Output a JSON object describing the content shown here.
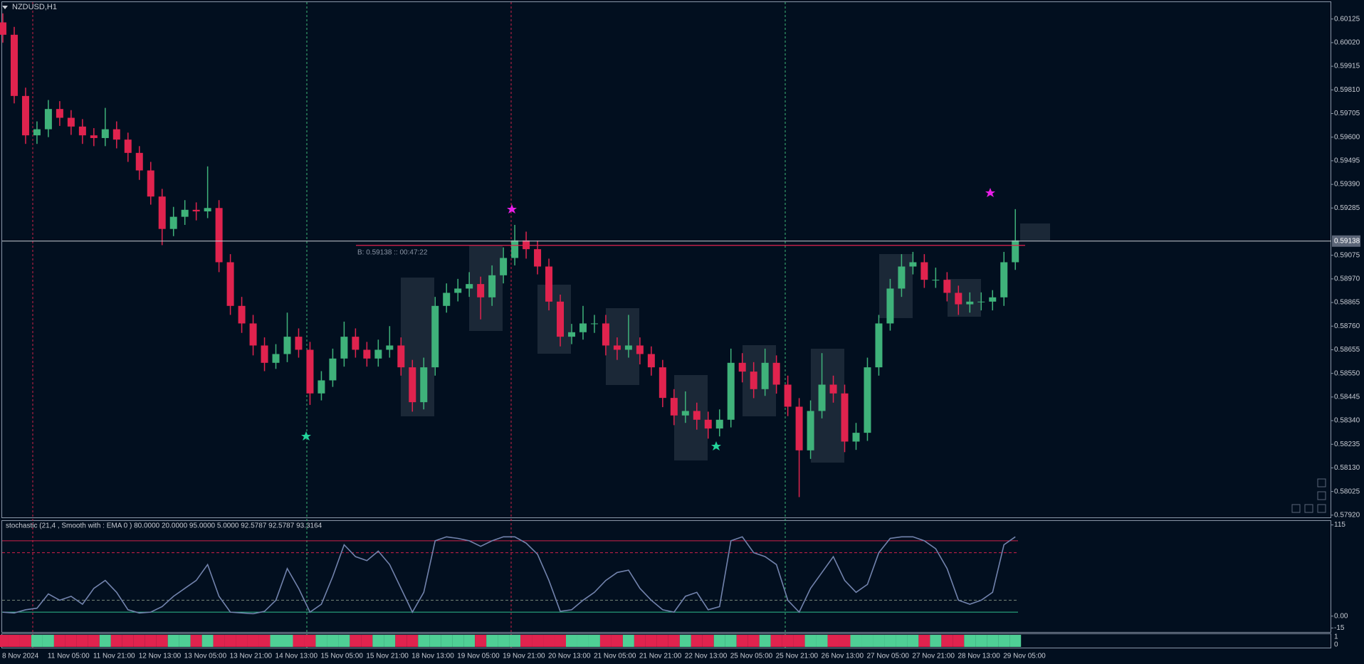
{
  "chart_data": [
    {
      "type": "candlestick",
      "title": "NZDUSD,H1",
      "up_color": "#3fb27a",
      "down_color": "#e0234e",
      "ylim": [
        0.5791,
        0.602
      ],
      "yticks": [
        0.60125,
        {
          "value": 0.6002,
          "label": "0.60020"
        },
        0.59915,
        {
          "value": 0.5981,
          "label": "0.59810"
        },
        0.59705,
        {
          "value": 0.596,
          "label": "0.59600"
        },
        0.59495,
        {
          "value": 0.5939,
          "label": "0.59390"
        },
        0.59285,
        0.59075,
        {
          "value": 0.5897,
          "label": "0.58970"
        },
        0.58865,
        {
          "value": 0.5876,
          "label": "0.58760"
        },
        0.58655,
        {
          "value": 0.5855,
          "label": "0.58550"
        },
        0.58445,
        {
          "value": 0.5834,
          "label": "0.58340"
        },
        0.58235,
        {
          "value": 0.5813,
          "label": "0.58130"
        },
        0.58025,
        {
          "value": 0.5792,
          "label": "0.57920"
        }
      ],
      "bid": 0.59138,
      "bid_label": "B: 0.59138 :: 00:47:22",
      "categories": [
        "8 Nov 2024",
        null,
        null,
        null,
        "11 Nov 05:00",
        null,
        null,
        null,
        "11 Nov 21:00",
        null,
        null,
        null,
        "12 Nov 13:00",
        null,
        null,
        null,
        "13 Nov 05:00",
        null,
        null,
        null,
        "13 Nov 21:00",
        null,
        null,
        null,
        "14 Nov 13:00",
        null,
        null,
        null,
        "15 Nov 05:00",
        null,
        null,
        null,
        "15 Nov 21:00",
        null,
        null,
        null,
        "18 Nov 13:00",
        null,
        null,
        null,
        "19 Nov 05:00",
        null,
        null,
        null,
        "19 Nov 21:00",
        null,
        null,
        null,
        "20 Nov 13:00",
        null,
        null,
        null,
        "21 Nov 05:00",
        null,
        null,
        null,
        "21 Nov 21:00",
        null,
        null,
        null,
        "22 Nov 13:00",
        null,
        null,
        null,
        "25 Nov 05:00",
        null,
        null,
        null,
        "25 Nov 21:00",
        null,
        null,
        null,
        "26 Nov 13:00",
        null,
        null,
        null,
        "27 Nov 05:00",
        null,
        null,
        null,
        "27 Nov 21:00",
        null,
        null,
        null,
        "28 Nov 13:00",
        null,
        null,
        null,
        "29 Nov 05:00",
        null
      ],
      "candles": [
        [
          0.6011,
          0.6015,
          0.6002,
          0.60055
        ],
        [
          0.60055,
          0.6009,
          0.5975,
          0.59783
        ],
        [
          0.59783,
          0.5982,
          0.5957,
          0.59608
        ],
        [
          0.59608,
          0.5967,
          0.5957,
          0.59635
        ],
        [
          0.59635,
          0.59765,
          0.596,
          0.59725
        ],
        [
          0.59725,
          0.5976,
          0.5965,
          0.59686
        ],
        [
          0.59686,
          0.5972,
          0.5961,
          0.59647
        ],
        [
          0.59647,
          0.5968,
          0.5957,
          0.59608
        ],
        [
          0.59608,
          0.5964,
          0.5956,
          0.59596
        ],
        [
          0.59596,
          0.5973,
          0.5956,
          0.59635
        ],
        [
          0.59635,
          0.5967,
          0.5955,
          0.59589
        ],
        [
          0.59589,
          0.5962,
          0.5949,
          0.5953
        ],
        [
          0.5953,
          0.5956,
          0.5941,
          0.59452
        ],
        [
          0.59452,
          0.5949,
          0.593,
          0.59336
        ],
        [
          0.59336,
          0.5937,
          0.5912,
          0.59192
        ],
        [
          0.59192,
          0.5929,
          0.5916,
          0.59246
        ],
        [
          0.59246,
          0.5932,
          0.5921,
          0.59277
        ],
        [
          0.59277,
          0.5931,
          0.5923,
          0.5927
        ],
        [
          0.5927,
          0.5947,
          0.5924,
          0.59285
        ],
        [
          0.59285,
          0.5932,
          0.59,
          0.59044
        ],
        [
          0.59044,
          0.5908,
          0.5881,
          0.5885
        ],
        [
          0.5885,
          0.5889,
          0.5873,
          0.58772
        ],
        [
          0.58772,
          0.5881,
          0.5863,
          0.58674
        ],
        [
          0.58674,
          0.5871,
          0.5856,
          0.58597
        ],
        [
          0.58597,
          0.5868,
          0.5857,
          0.58636
        ],
        [
          0.58636,
          0.5882,
          0.586,
          0.58713
        ],
        [
          0.58713,
          0.5875,
          0.5862,
          0.58655
        ],
        [
          0.58655,
          0.5869,
          0.5841,
          0.58461
        ],
        [
          0.58461,
          0.5856,
          0.5843,
          0.58519
        ],
        [
          0.58519,
          0.5866,
          0.5849,
          0.58616
        ],
        [
          0.58616,
          0.5878,
          0.5858,
          0.58713
        ],
        [
          0.58713,
          0.5875,
          0.5862,
          0.58655
        ],
        [
          0.58655,
          0.5869,
          0.5858,
          0.58616
        ],
        [
          0.58616,
          0.587,
          0.5858,
          0.58655
        ],
        [
          0.58655,
          0.5876,
          0.5862,
          0.58674
        ],
        [
          0.58674,
          0.5871,
          0.5854,
          0.58577
        ],
        [
          0.58577,
          0.5861,
          0.5838,
          0.58422
        ],
        [
          0.58422,
          0.5862,
          0.5839,
          0.58577
        ],
        [
          0.58577,
          0.5889,
          0.5854,
          0.5885
        ],
        [
          0.5885,
          0.5895,
          0.5882,
          0.58908
        ],
        [
          0.58908,
          0.5897,
          0.5887,
          0.58927
        ],
        [
          0.58927,
          0.59,
          0.5889,
          0.58947
        ],
        [
          0.58947,
          0.5898,
          0.5879,
          0.58888
        ],
        [
          0.58888,
          0.5903,
          0.5885,
          0.58986
        ],
        [
          0.58986,
          0.5911,
          0.5895,
          0.59063
        ],
        [
          0.59063,
          0.5921,
          0.5903,
          0.59141
        ],
        [
          0.59141,
          0.5918,
          0.5906,
          0.59102
        ],
        [
          0.59102,
          0.5914,
          0.5899,
          0.59025
        ],
        [
          0.59025,
          0.5906,
          0.5883,
          0.58869
        ],
        [
          0.58869,
          0.589,
          0.5867,
          0.58713
        ],
        [
          0.58713,
          0.5877,
          0.5868,
          0.58733
        ],
        [
          0.58733,
          0.5885,
          0.587,
          0.58772
        ],
        [
          0.58772,
          0.5881,
          0.5873,
          0.58772
        ],
        [
          0.58772,
          0.5881,
          0.5863,
          0.58674
        ],
        [
          0.58674,
          0.5871,
          0.5861,
          0.58655
        ],
        [
          0.58655,
          0.5881,
          0.5862,
          0.58674
        ],
        [
          0.58674,
          0.5871,
          0.5859,
          0.58636
        ],
        [
          0.58636,
          0.5867,
          0.5854,
          0.58577
        ],
        [
          0.58577,
          0.5861,
          0.584,
          0.58441
        ],
        [
          0.58441,
          0.5848,
          0.5832,
          0.58363
        ],
        [
          0.58363,
          0.5847,
          0.5833,
          0.58383
        ],
        [
          0.58383,
          0.5842,
          0.583,
          0.58344
        ],
        [
          0.58344,
          0.5838,
          0.5826,
          0.58305
        ],
        [
          0.58305,
          0.5839,
          0.5827,
          0.58344
        ],
        [
          0.58344,
          0.5866,
          0.5831,
          0.58597
        ],
        [
          0.58597,
          0.5864,
          0.5851,
          0.58558
        ],
        [
          0.58558,
          0.586,
          0.5844,
          0.5848
        ],
        [
          0.5848,
          0.5866,
          0.5845,
          0.58597
        ],
        [
          0.58597,
          0.5863,
          0.5846,
          0.585
        ],
        [
          0.585,
          0.5854,
          0.5836,
          0.58402
        ],
        [
          0.58402,
          0.5844,
          0.58,
          0.58208
        ],
        [
          0.58208,
          0.5843,
          0.5817,
          0.58383
        ],
        [
          0.58383,
          0.5864,
          0.5835,
          0.585
        ],
        [
          0.585,
          0.5854,
          0.5842,
          0.58461
        ],
        [
          0.58461,
          0.585,
          0.582,
          0.58247
        ],
        [
          0.58247,
          0.5833,
          0.5821,
          0.58286
        ],
        [
          0.58286,
          0.5862,
          0.5825,
          0.58577
        ],
        [
          0.58577,
          0.5881,
          0.5854,
          0.58772
        ],
        [
          0.58772,
          0.5897,
          0.5874,
          0.58927
        ],
        [
          0.58927,
          0.5908,
          0.5889,
          0.59025
        ],
        [
          0.59025,
          0.5909,
          0.5899,
          0.59044
        ],
        [
          0.59044,
          0.5908,
          0.5893,
          0.58966
        ],
        [
          0.58966,
          0.5902,
          0.5893,
          0.58966
        ],
        [
          0.58966,
          0.59,
          0.5887,
          0.58908
        ],
        [
          0.58908,
          0.5894,
          0.5881,
          0.58857
        ],
        [
          0.58857,
          0.5891,
          0.5882,
          0.58869
        ],
        [
          0.58869,
          0.5891,
          0.5883,
          0.58869
        ],
        [
          0.58869,
          0.5892,
          0.5883,
          0.58888
        ],
        [
          0.58888,
          0.5909,
          0.5885,
          0.59044
        ],
        [
          0.59044,
          0.5928,
          0.5901,
          0.59141
        ]
      ]
    },
    {
      "type": "line",
      "title": "stochastic (21,4 , Smooth with : EMA  0 ) 80.0000 20.0000 95.0000 5.0000 92.5787 92.5787 93.3164",
      "color": "#7283ad",
      "ylim": [
        -20,
        120
      ],
      "yticks": [
        115,
        {
          "value": 0,
          "label": "0.00"
        },
        -15
      ],
      "levels": [
        95,
        80,
        20,
        5
      ],
      "values": [
        5,
        4,
        8,
        10,
        28,
        20,
        25,
        15,
        35,
        45,
        30,
        8,
        4,
        5,
        12,
        25,
        35,
        45,
        65,
        25,
        5,
        4,
        3,
        6,
        20,
        60,
        35,
        5,
        15,
        50,
        90,
        75,
        70,
        82,
        65,
        35,
        5,
        30,
        95,
        100,
        98,
        95,
        88,
        95,
        100,
        100,
        92,
        78,
        45,
        6,
        8,
        20,
        30,
        45,
        55,
        58,
        35,
        20,
        8,
        5,
        25,
        30,
        8,
        12,
        95,
        100,
        80,
        75,
        65,
        20,
        5,
        35,
        55,
        75,
        45,
        30,
        40,
        80,
        98,
        100,
        100,
        95,
        85,
        60,
        20,
        15,
        20,
        30,
        90,
        100
      ]
    },
    {
      "type": "signal",
      "ylim": [
        0,
        1
      ],
      "yticks": [
        1,
        0
      ]
    }
  ]
}
